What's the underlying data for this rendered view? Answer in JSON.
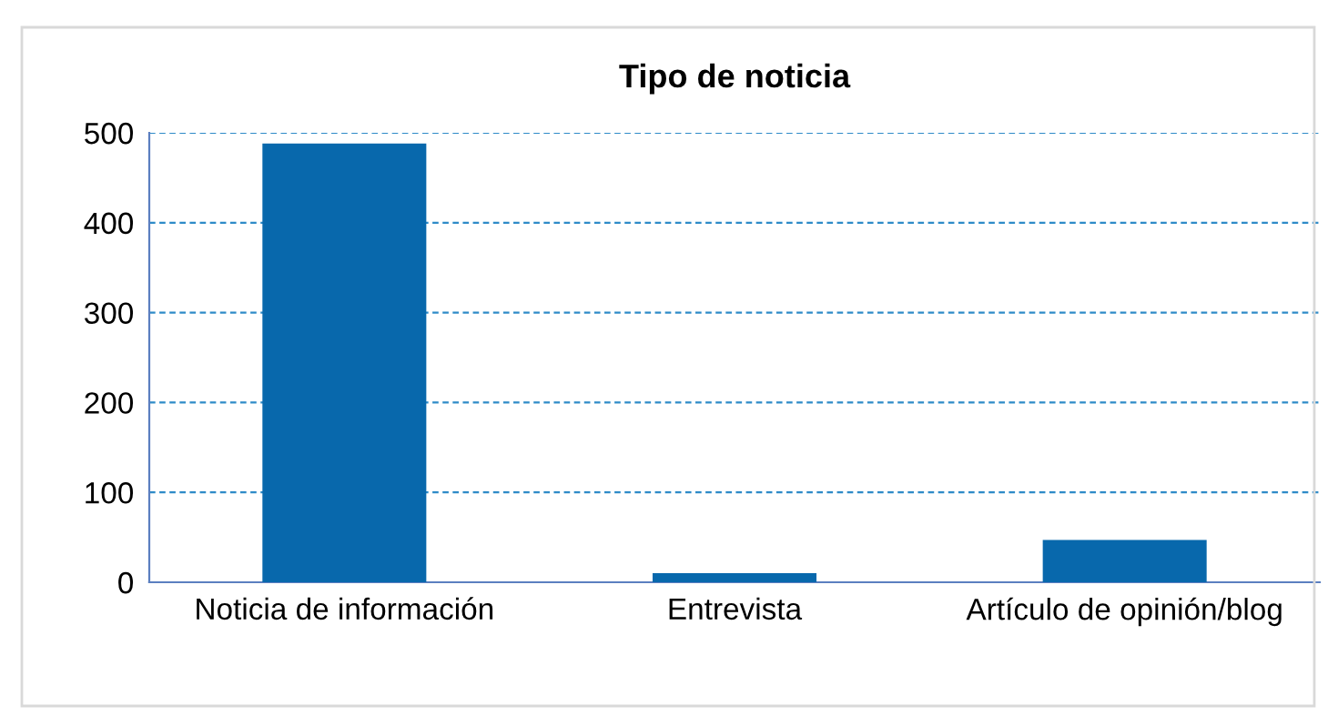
{
  "chart_data": {
    "type": "bar",
    "title": "Tipo de noticia",
    "categories": [
      "Noticia de información",
      "Entrevista",
      "Artículo de opinión/blog"
    ],
    "values": [
      488,
      10,
      47
    ],
    "color": "#0868ac",
    "ylim": [
      0,
      500
    ],
    "yticks": [
      0,
      100,
      200,
      300,
      400,
      500
    ],
    "grid": "y"
  }
}
